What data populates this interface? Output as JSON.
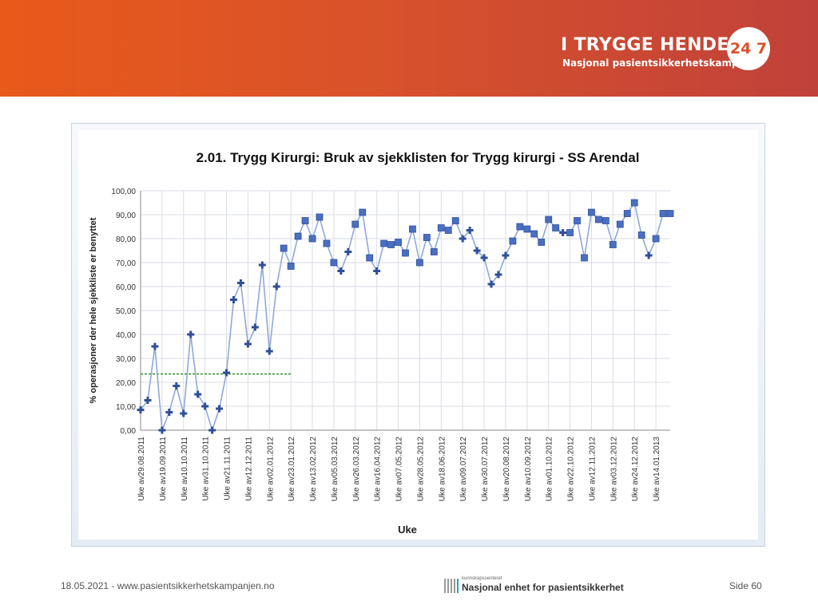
{
  "header": {
    "brand": "I TRYGGE HENDER",
    "badge": "24 7",
    "tagline": "Nasjonal pasientsikkerhetskampanje"
  },
  "footer": {
    "date_url": "18.05.2021 - www.pasientsikkerhetskampanjen.no",
    "logo_small": "kunnskapssenteret",
    "logo_main": "Nasjonal enhet for pasientsikkerhet",
    "page": "Side 60"
  },
  "colors": {
    "header_start": "#e8591a",
    "header_end": "#c0413a",
    "series_line": "#8fa9d8",
    "marker_fill": "#4a6fc2",
    "baseline": "#2e8b2e"
  },
  "chart_data": {
    "type": "line",
    "title": "2.01. Trygg Kirurgi: Bruk av sjekklisten for Trygg kirurgi  - SS Arendal",
    "xlabel": "Uke",
    "ylabel": "% operasjoner der hele sjekkliste er benyttet",
    "ylim": [
      0,
      100
    ],
    "yticks": [
      "0,00",
      "10,00",
      "20,00",
      "30,00",
      "40,00",
      "50,00",
      "60,00",
      "70,00",
      "80,00",
      "90,00",
      "100,00"
    ],
    "xtick_labels": [
      "Uke av29.08.2011",
      "Uke av19.09.2011",
      "Uke av10.10.2011",
      "Uke av31.10.2011",
      "Uke av21.11.2011",
      "Uke av12.12.2011",
      "Uke av02.01.2012",
      "Uke av23.01.2012",
      "Uke av13.02.2012",
      "Uke av05.03.2012",
      "Uke av26.03.2012",
      "Uke av16.04.2012",
      "Uke av07.05.2012",
      "Uke av28.05.2012",
      "Uke av18.06.2012",
      "Uke av09.07.2012",
      "Uke av30.07.2012",
      "Uke av20.08.2012",
      "Uke av10.09.2012",
      "Uke av01.10.2012",
      "Uke av22.10.2012",
      "Uke av12.11.2012",
      "Uke av03.12.2012",
      "Uke av24.12.2012",
      "Uke av14.01.2013"
    ],
    "xtick_positions": [
      0,
      3,
      6,
      9,
      12,
      15,
      18,
      21,
      24,
      27,
      30,
      33,
      36,
      39,
      42,
      45,
      48,
      51,
      54,
      57,
      60,
      63,
      66,
      69,
      72
    ],
    "baseline": {
      "value": 23.5,
      "x_start": 0,
      "x_end": 21
    },
    "values": [
      8.5,
      12.5,
      35,
      0,
      7.5,
      18.5,
      7,
      40,
      15,
      10,
      0,
      9,
      24,
      54.5,
      61.5,
      36,
      43,
      69,
      33,
      60,
      76,
      68.5,
      81,
      87.5,
      80,
      89,
      78,
      70,
      66.5,
      74.5,
      86,
      91,
      72,
      66.5,
      78,
      77.5,
      78.5,
      74,
      84,
      70,
      80.5,
      74.5,
      84.5,
      83.5,
      87.5,
      80,
      83.5,
      75,
      72,
      61,
      65,
      73,
      79,
      85,
      84,
      82,
      78.5,
      88,
      84.5,
      82.5,
      82.5,
      87.5,
      72,
      91,
      88,
      87.5,
      77.5,
      86,
      90.5,
      95,
      81.5,
      73,
      80,
      90.5,
      90.5
    ],
    "markers": [
      "plus",
      "plus",
      "plus",
      "plus",
      "plus",
      "plus",
      "plus",
      "plus",
      "plus",
      "plus",
      "plus",
      "plus",
      "plus",
      "plus",
      "plus",
      "plus",
      "plus",
      "plus",
      "plus",
      "plus",
      "square",
      "square",
      "square",
      "square",
      "square",
      "square",
      "square",
      "square",
      "plus",
      "plus",
      "square",
      "square",
      "square",
      "plus",
      "square",
      "square",
      "square",
      "square",
      "square",
      "square",
      "square",
      "square",
      "square",
      "square",
      "square",
      "plus",
      "plus",
      "plus",
      "plus",
      "plus",
      "plus",
      "plus",
      "square",
      "square",
      "square",
      "square",
      "square",
      "square",
      "square",
      "plus",
      "square",
      "square",
      "square",
      "square",
      "square",
      "square",
      "square",
      "square",
      "square",
      "square",
      "square",
      "plus",
      "square",
      "square",
      "square"
    ],
    "grid": true,
    "legend": "none"
  }
}
